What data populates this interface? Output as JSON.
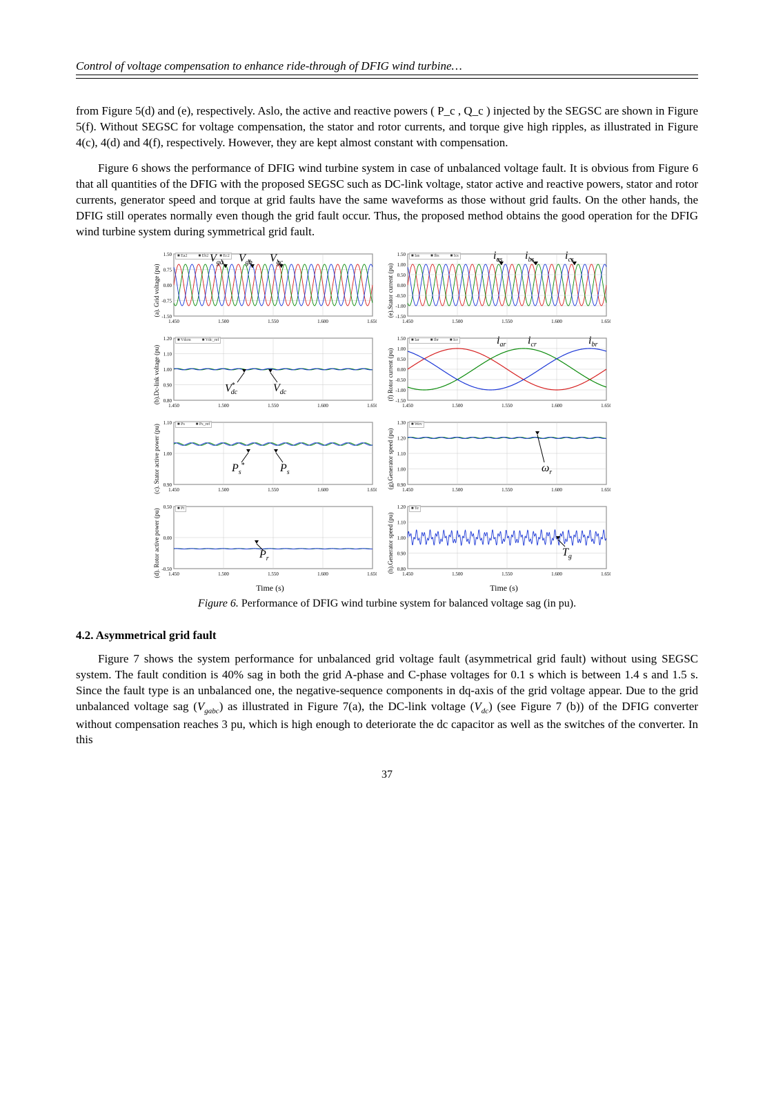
{
  "header": "Control of voltage compensation to enhance ride-through of DFIG wind turbine…",
  "para1": "from Figure 5(d) and (e), respectively. Aslo, the active and reactive powers ( P_c , Q_c ) injected by the SEGSC are shown in Figure 5(f). Without SEGSC for voltage compensation, the stator and rotor currents, and torque give high ripples, as illustrated in Figure 4(c), 4(d) and 4(f), respectively. However, they are kept almost constant with compensation.",
  "para2": "Figure 6 shows the performance of DFIG wind turbine system in case of unbalanced voltage fault. It is obvious from Figure 6 that all quantities of the DFIG with the proposed SEGSC such as DC-link voltage, stator active and reactive powers, stator and rotor currents, generator speed and torque at grid faults have the same waveforms as those without grid faults. On the other hands, the DFIG still operates normally even though the grid fault occur. Thus, the proposed method obtains the good operation for the DFIG wind turbine system during symmetrical grid fault.",
  "caption": {
    "fignum": "Figure 6.",
    "text": " Performance of DFIG wind turbine system for balanced voltage sag (in pu)."
  },
  "section": "4.2. Asymmetrical grid fault",
  "para3_a": "Figure 7 shows the system performance for unbalanced grid voltage fault (asymmetrical grid fault) without using SEGSC system. The fault condition is 40% sag in both the grid A-phase and C-phase voltages for 0.1 s which is between 1.4 s and 1.5 s. Since the fault type is an unbalanced one, the negative-sequence components in dq-axis of the grid voltage appear. Due to the grid unbalanced voltage sag (",
  "para3_b": ") as illustrated in Figure 7(a), the DC-link voltage (",
  "para3_c": ") (see Figure 7 (b)) of the DFIG converter without compensation reaches 3 pu, which is high enough to deteriorate the dc capacitor as well as the switches of the converter. In this",
  "panels": {
    "a": {
      "ylab": "(a). Grid voltage (pu)",
      "ylim": [
        -1.5,
        1.5
      ],
      "yticks": [
        "-1.50",
        "-0.75",
        "0.00",
        "0.75",
        "1.50"
      ],
      "lg": [
        "Ea2",
        "Eb2",
        "Ec2"
      ],
      "ann": [
        "V_ga",
        "V_gb",
        "V_gc"
      ],
      "type": "3sine"
    },
    "b": {
      "ylab": "(b).Dc-link voltage (pu)",
      "ylim": [
        0.8,
        1.2
      ],
      "yticks": [
        "0.80",
        "0.90",
        "1.00",
        "1.10",
        "1.20"
      ],
      "lg": [
        "Vdcm",
        "Vdc_ref"
      ],
      "ann": [
        "V*_dc",
        "V_dc"
      ],
      "type": "flat"
    },
    "c": {
      "ylab": "(c). Stator active power (pu)",
      "ylim": [
        0.9,
        1.1
      ],
      "yticks": [
        "0.90",
        "1.00",
        "1.10"
      ],
      "lg": [
        "Ps",
        "Ps_ref"
      ],
      "ann": [
        "P_s*",
        "P_s"
      ],
      "type": "flat"
    },
    "d": {
      "ylab": "(d). Rotor active power (pu)",
      "ylim": [
        -0.5,
        0.5
      ],
      "yticks": [
        "-0.50",
        "0.00",
        "0.50"
      ],
      "lg": [
        "Pt"
      ],
      "ann": [
        "P_r"
      ],
      "type": "flat"
    },
    "e": {
      "ylab": "(e).Stator current (pu)",
      "ylim": [
        -1.5,
        1.5
      ],
      "yticks": [
        "-1.50",
        "-1.00",
        "-0.50",
        "0.00",
        "0.50",
        "1.00",
        "1.50"
      ],
      "lg": [
        "Ias",
        "Ibs",
        "Ics"
      ],
      "ann": [
        "i_as",
        "i_bs",
        "i_cs"
      ],
      "type": "3sine"
    },
    "f": {
      "ylab": "(f) Rotor current (pu)",
      "ylim": [
        -1.5,
        1.5
      ],
      "yticks": [
        "-1.50",
        "-1.00",
        "-0.50",
        "0.00",
        "0.50",
        "1.00",
        "1.50"
      ],
      "lg": [
        "Iar",
        "Ibr",
        "Icr"
      ],
      "ann": [
        "i_ar",
        "i_cr",
        "i_br"
      ],
      "type": "3slow"
    },
    "g": {
      "ylab": "(g).Generator speed (pu)",
      "ylim": [
        0.9,
        1.3
      ],
      "yticks": [
        "0.90",
        "1.00",
        "1.10",
        "1.20",
        "1.30"
      ],
      "lg": [
        "Wev"
      ],
      "ann": [
        "ω_r"
      ],
      "type": "flat"
    },
    "h": {
      "ylab": "(h).Generator speed (pu)",
      "ylim": [
        0.8,
        1.2
      ],
      "yticks": [
        "0.80",
        "0.90",
        "1.00",
        "1.10",
        "1.20"
      ],
      "lg": [
        "Te"
      ],
      "ann": [
        "T_g"
      ],
      "type": "noisy"
    }
  },
  "xlim": [
    1.45,
    1.65
  ],
  "xticks": [
    "1.450",
    "1.500",
    "1.550",
    "1.600",
    "1.650"
  ],
  "xlabel": "Time (s)",
  "colors": {
    "r": "#d61f1f",
    "g": "#0a8a0a",
    "b": "#1a36d6",
    "grid": "#c9c9c9",
    "axis": "#000",
    "bg": "#ffffff",
    "noisy": "#1a36d6"
  },
  "pagenum": "37"
}
